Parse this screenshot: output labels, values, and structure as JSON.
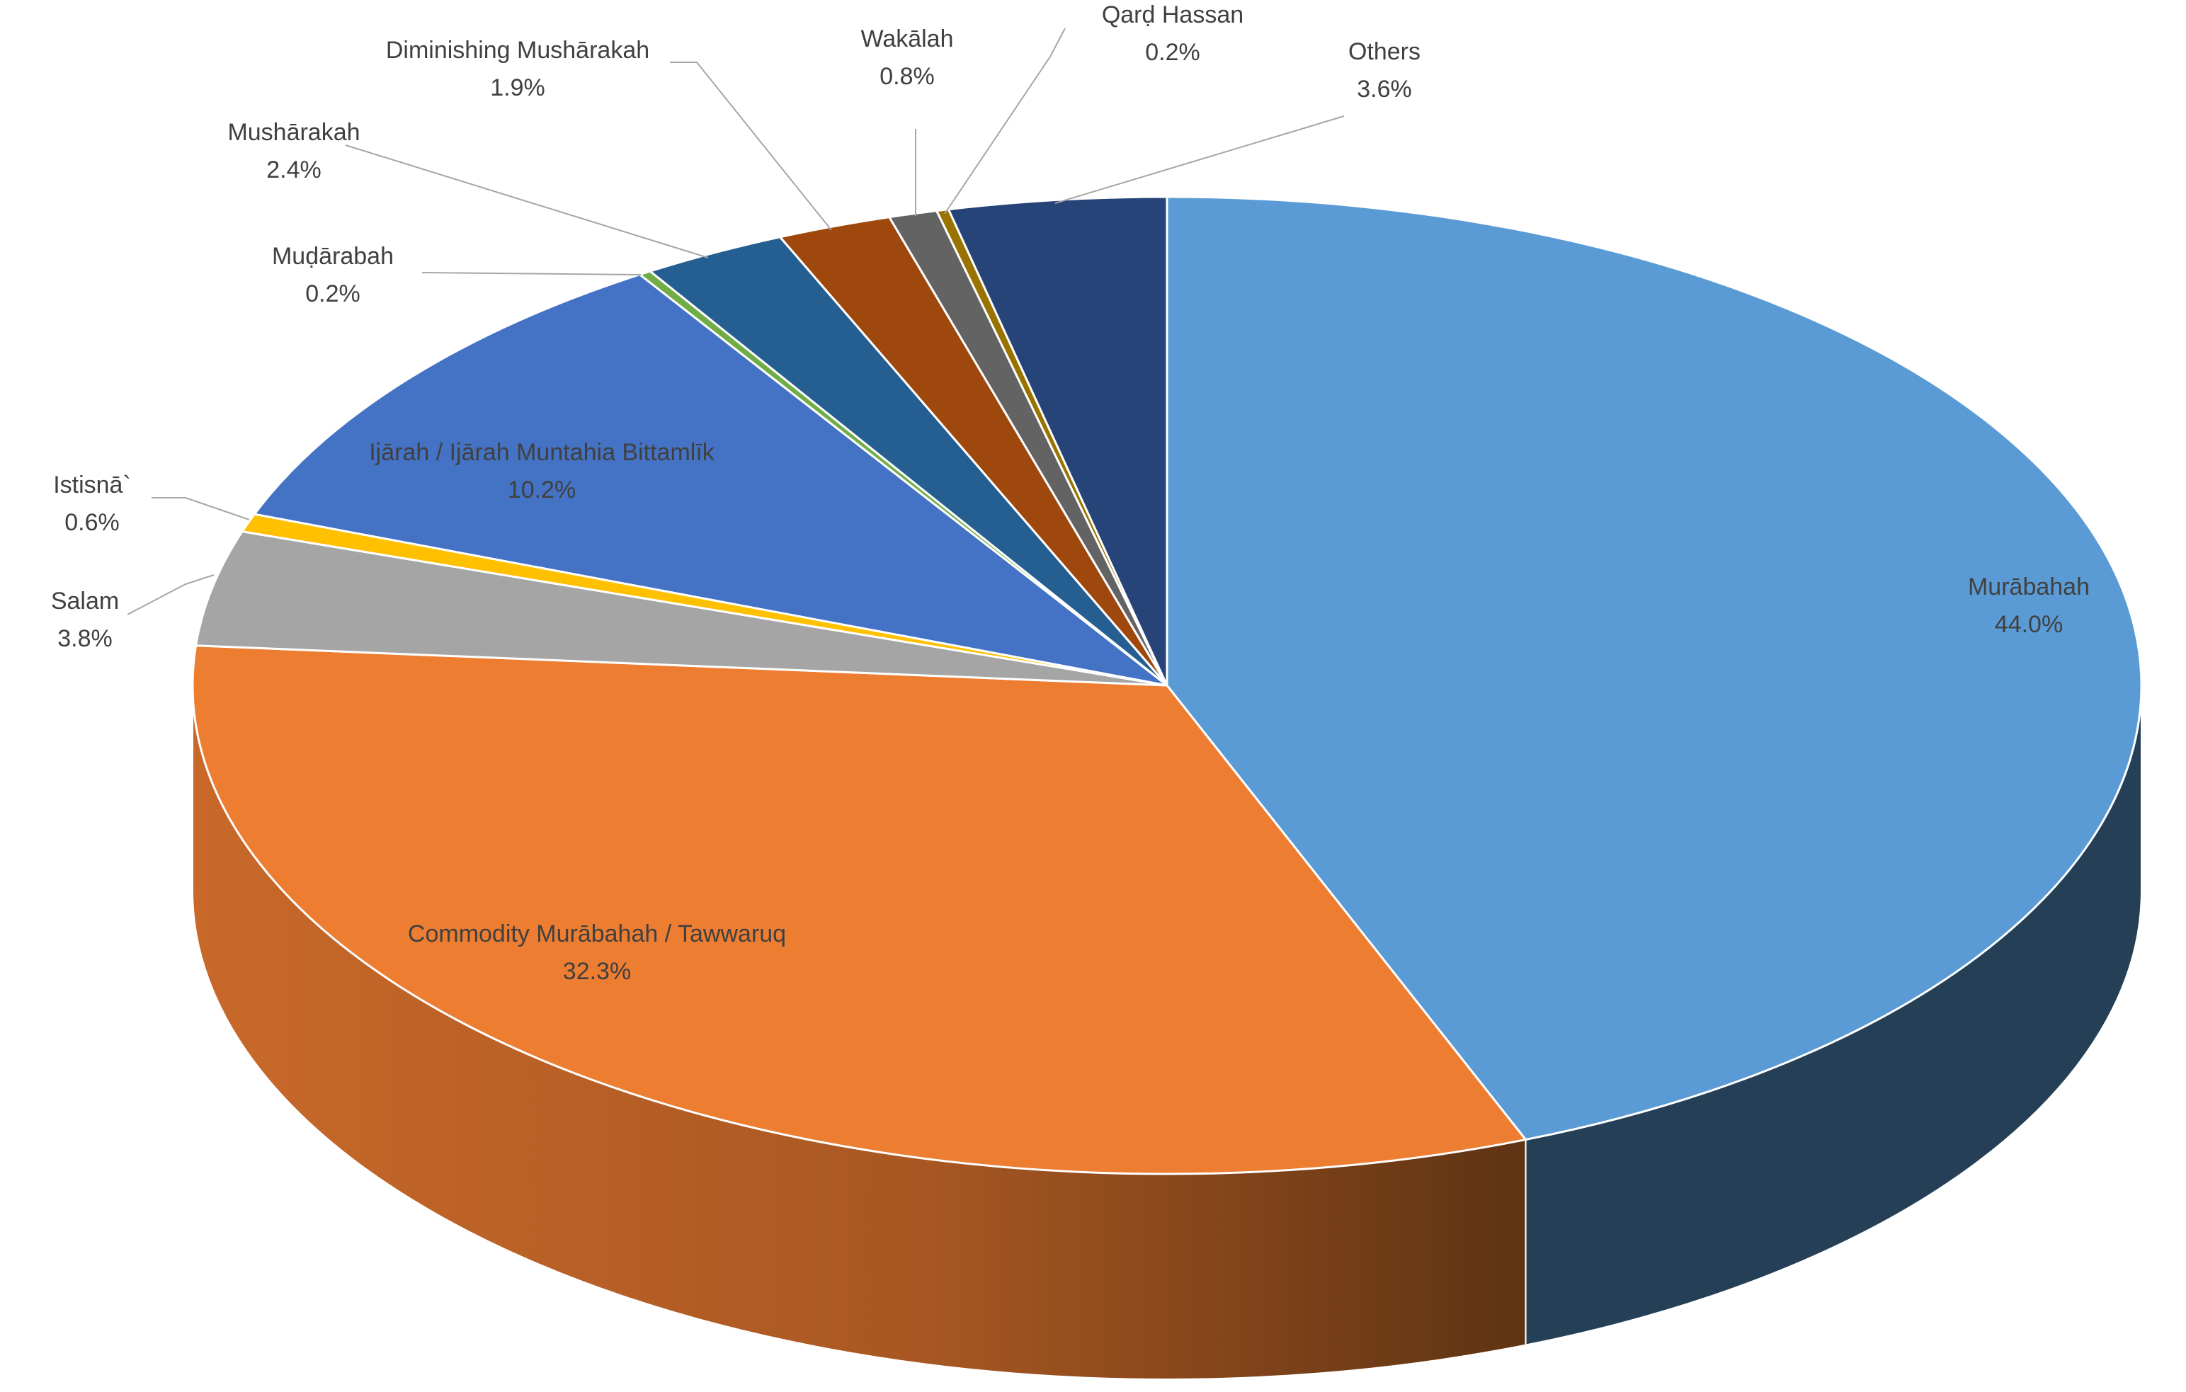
{
  "chart_data": {
    "type": "pie",
    "style": "3d",
    "title": "",
    "legend": "none",
    "data_labels": "category name and percentage",
    "slices": [
      {
        "name": "Murābahah",
        "value": 44.0,
        "label_value": "44.0%",
        "color": "#5B9BD5",
        "side_color": "#243F56"
      },
      {
        "name": "Commodity Murābahah / Tawwaruq",
        "value": 32.3,
        "label_value": "32.3%",
        "color": "#ED7D31",
        "side_color": "#B85C22"
      },
      {
        "name": "Salam",
        "value": 3.8,
        "label_value": "3.8%",
        "color": "#A5A5A5",
        "side_color": "#7A7A7A"
      },
      {
        "name": "Istisnā`",
        "value": 0.6,
        "label_value": "0.6%",
        "color": "#FFC000",
        "side_color": "#BF9000"
      },
      {
        "name": "Ijārah / Ijārah Muntahia Bittamlīk",
        "value": 10.2,
        "label_value": "10.2%",
        "color": "#4472C4",
        "side_color": "#2F5597"
      },
      {
        "name": "Muḍārabah",
        "value": 0.2,
        "label_value": "0.2%",
        "color": "#70AD47",
        "side_color": "#4E7A31"
      },
      {
        "name": "Mushārakah",
        "value": 2.4,
        "label_value": "2.4%",
        "color": "#255E91",
        "side_color": "#1A4366"
      },
      {
        "name": "Diminishing Mushārakah",
        "value": 1.9,
        "label_value": "1.9%",
        "color": "#9E480E",
        "side_color": "#6E320A"
      },
      {
        "name": "Wakālah",
        "value": 0.8,
        "label_value": "0.8%",
        "color": "#636363",
        "side_color": "#444444"
      },
      {
        "name": "Qarḍ Hassan",
        "value": 0.2,
        "label_value": "0.2%",
        "color": "#997300",
        "side_color": "#6B5000"
      },
      {
        "name": "Others",
        "value": 3.6,
        "label_value": "3.6%",
        "color": "#264478",
        "side_color": "#1A2F54"
      }
    ]
  }
}
